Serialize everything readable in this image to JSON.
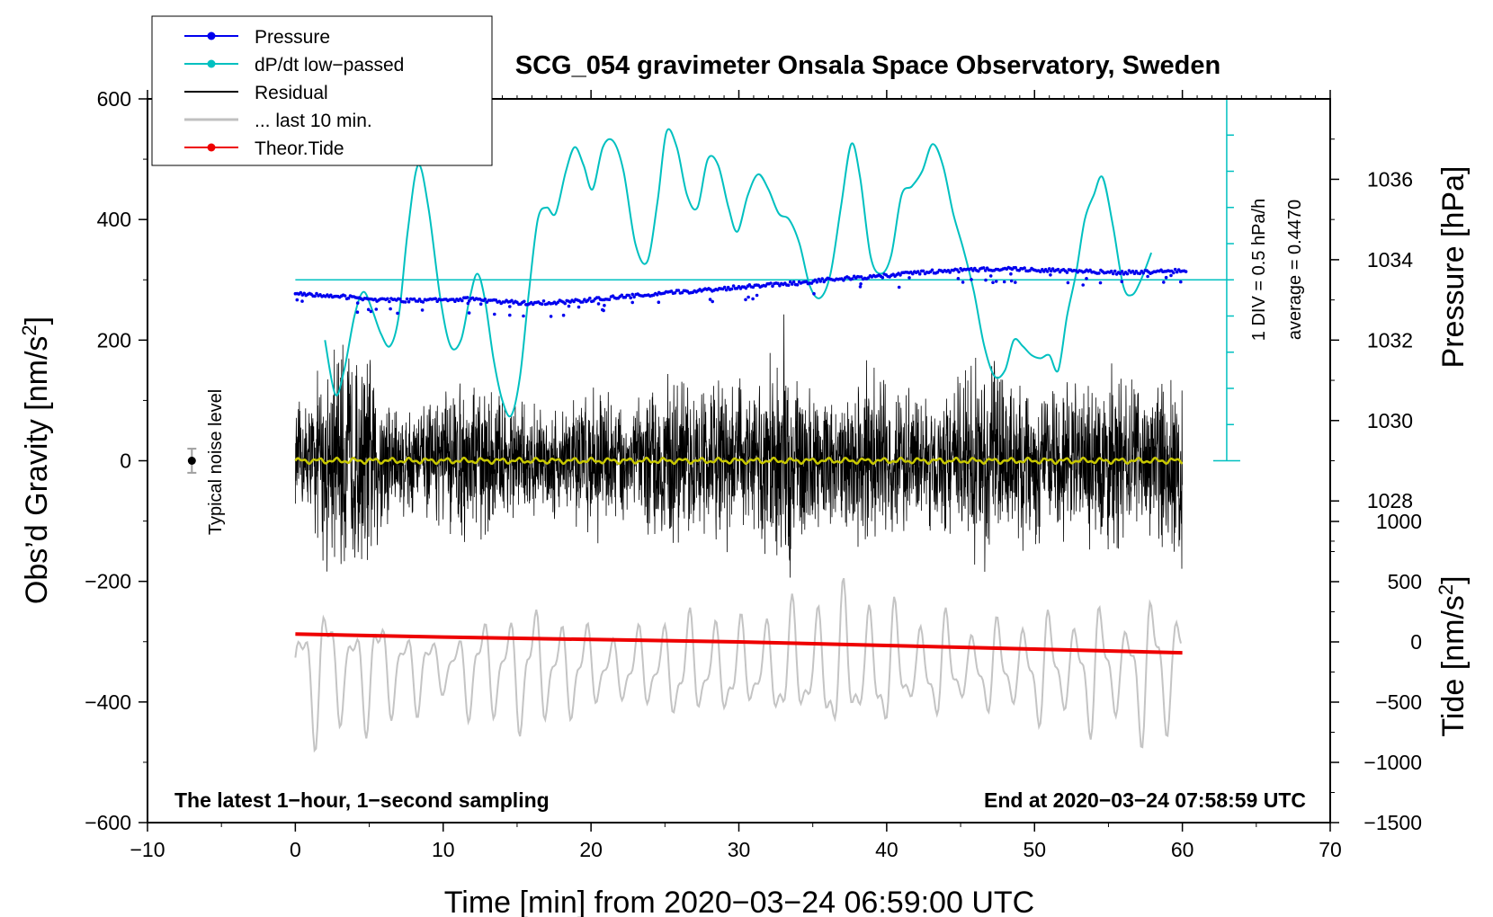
{
  "chart_data": {
    "type": "line",
    "title": "SCG_054 gravimeter Onsala Space Observatory, Sweden",
    "xlabel": "Time [min] from 2020−03−24 06:59:00 UTC",
    "ylabel_left_main": "Obs’d Gravity [nm/s",
    "ylabel_left_sup": "2",
    "ylabel_left_end": "]",
    "ylabel_right_pressure": "Pressure [hPa]",
    "ylabel_right_tide_main": "Tide [nm/s",
    "ylabel_right_tide_sup": "2",
    "ylabel_right_tide_end": "]",
    "xlim": [
      -10,
      70
    ],
    "ylim": [
      -600,
      600
    ],
    "x_ticks": [
      -10,
      0,
      10,
      20,
      30,
      40,
      50,
      60,
      70
    ],
    "x_tick_labels": [
      "−10",
      "0",
      "10",
      "20",
      "30",
      "40",
      "50",
      "60",
      "70"
    ],
    "y_ticks": [
      -600,
      -400,
      -200,
      0,
      200,
      400,
      600
    ],
    "y_tick_labels": [
      "−600",
      "−400",
      "−200",
      "0",
      "200",
      "400",
      "600"
    ],
    "pressure_axis": {
      "ticks": [
        1028,
        1030,
        1032,
        1034,
        1036
      ],
      "tick_labels": [
        "1028",
        "1030",
        "1032",
        "1034",
        "1036"
      ],
      "range_hPa": [
        1020,
        1038
      ]
    },
    "tide_axis": {
      "ticks": [
        -1500,
        -1000,
        -500,
        0,
        500,
        1000
      ],
      "tick_labels": [
        "−1500",
        "−1000",
        "−500",
        "0",
        "500",
        "1000"
      ],
      "range": [
        -1500,
        1000
      ]
    },
    "dpdt_scale": {
      "div_label": "1 DIV = 0.5 hPa/h",
      "average_label": "average = 0.4470",
      "zero_level_gravity_units": 300,
      "base_gravity_units": 0,
      "top_gravity_units": 600,
      "div_gravity_units": 60
    },
    "legend": [
      {
        "label": "Pressure",
        "color": "#0000ee",
        "marker": true
      },
      {
        "label": "dP/dt low−passed",
        "color": "#00c0c0",
        "marker": true
      },
      {
        "label": "Residual",
        "color": "#000000",
        "marker": false
      },
      {
        "label": "... last 10 min.",
        "color": "#c0c0c0",
        "marker": false
      },
      {
        "label": "Theor.Tide",
        "color": "#ee0000",
        "marker": true
      }
    ],
    "annotations": {
      "left_bottom": "The latest 1−hour, 1−second sampling",
      "right_bottom": "End at 2020−03−24 07:58:59 UTC",
      "noise": "Typical noise level",
      "noise_x": -7,
      "noise_y": 0,
      "noise_half_range": 20
    },
    "series": [
      {
        "name": "Pressure",
        "axis": "pressure",
        "color": "#0000ee",
        "x": [
          0,
          2,
          4,
          6,
          8,
          10,
          12,
          14,
          16,
          18,
          20,
          22,
          24,
          26,
          28,
          30,
          32,
          34,
          36,
          38,
          40,
          42,
          44,
          46,
          48,
          50,
          52,
          54,
          56,
          58,
          60
        ],
        "values": [
          1033.15,
          1033.12,
          1033.05,
          1033.0,
          1032.98,
          1033.0,
          1033.02,
          1032.95,
          1032.92,
          1032.95,
          1033.0,
          1033.08,
          1033.12,
          1033.2,
          1033.25,
          1033.32,
          1033.38,
          1033.42,
          1033.5,
          1033.55,
          1033.6,
          1033.68,
          1033.72,
          1033.75,
          1033.78,
          1033.75,
          1033.72,
          1033.7,
          1033.68,
          1033.7,
          1033.72
        ]
      },
      {
        "name": "dP/dt low−passed",
        "axis": "gravity",
        "color": "#00c0c0",
        "x": [
          2.0,
          2.7,
          3.3,
          4.0,
          4.6,
          5.2,
          5.8,
          6.4,
          7.0,
          7.6,
          8.3,
          9.0,
          9.8,
          10.5,
          11.2,
          11.8,
          12.3,
          12.8,
          13.4,
          14.0,
          14.6,
          15.2,
          15.8,
          16.4,
          17.0,
          17.6,
          18.3,
          18.9,
          19.5,
          20.1,
          20.8,
          21.5,
          22.2,
          23.0,
          23.8,
          24.5,
          25.1,
          25.8,
          26.5,
          27.2,
          27.9,
          28.6,
          29.3,
          29.9,
          30.6,
          31.3,
          32.0,
          32.7,
          33.4,
          34.1,
          34.8,
          35.5,
          36.2,
          36.9,
          37.6,
          38.2,
          38.9,
          39.6,
          40.3,
          41.0,
          41.7,
          42.4,
          43.1,
          43.8,
          44.5,
          45.2,
          45.9,
          46.6,
          47.3,
          48.0,
          48.6,
          49.2,
          49.8,
          50.4,
          51.0,
          51.6,
          52.2,
          52.8,
          53.4,
          54.0,
          54.6,
          55.3,
          56.0,
          56.6,
          57.2,
          57.9
        ],
        "values": [
          200,
          110,
          150,
          240,
          280,
          250,
          210,
          190,
          240,
          380,
          490,
          420,
          270,
          190,
          200,
          270,
          310,
          270,
          170,
          100,
          75,
          140,
          280,
          400,
          420,
          410,
          480,
          520,
          490,
          450,
          520,
          530,
          480,
          360,
          330,
          430,
          545,
          520,
          440,
          420,
          500,
          490,
          420,
          380,
          440,
          475,
          450,
          410,
          400,
          360,
          290,
          270,
          310,
          420,
          525,
          470,
          340,
          310,
          340,
          440,
          455,
          480,
          525,
          490,
          410,
          350,
          280,
          190,
          140,
          150,
          200,
          190,
          175,
          170,
          175,
          150,
          240,
          310,
          400,
          440,
          470,
          390,
          290,
          275,
          300,
          345
        ]
      },
      {
        "name": "Theor.Tide",
        "axis": "tide",
        "color": "#ee0000",
        "x": [
          0,
          10,
          20,
          30,
          40,
          50,
          60
        ],
        "values": [
          65,
          40,
          20,
          0,
          -30,
          -60,
          -90
        ]
      }
    ],
    "residual_envelope": {
      "x": [
        0,
        1,
        2,
        3,
        4,
        5,
        6,
        7,
        8,
        9,
        10,
        11,
        12,
        13,
        14,
        15,
        16,
        17,
        18,
        19,
        20,
        21,
        22,
        23,
        24,
        25,
        26,
        27,
        28,
        29,
        30,
        31,
        32,
        33,
        34,
        35,
        36,
        37,
        38,
        39,
        40,
        41,
        42,
        43,
        44,
        45,
        46,
        47,
        48,
        49,
        50,
        51,
        52,
        53,
        54,
        55,
        56,
        57,
        58,
        59,
        60
      ],
      "amplitude": [
        100,
        120,
        200,
        220,
        210,
        200,
        150,
        110,
        110,
        100,
        130,
        150,
        150,
        140,
        130,
        110,
        100,
        100,
        110,
        130,
        140,
        140,
        120,
        110,
        140,
        160,
        150,
        130,
        150,
        170,
        150,
        140,
        190,
        260,
        180,
        140,
        110,
        120,
        160,
        180,
        150,
        130,
        120,
        130,
        140,
        150,
        180,
        190,
        170,
        160,
        150,
        140,
        150,
        150,
        170,
        180,
        170,
        150,
        140,
        160,
        230
      ]
    },
    "last10_envelope": {
      "x": [
        0,
        2,
        4,
        6,
        8,
        10,
        12,
        14,
        16,
        18,
        20,
        22,
        24,
        26,
        28,
        30,
        32,
        34,
        36,
        38,
        40,
        42,
        44,
        46,
        48,
        50,
        52,
        54,
        56,
        58,
        60
      ],
      "amplitude": [
        95,
        130,
        95,
        105,
        75,
        50,
        85,
        100,
        110,
        90,
        75,
        55,
        80,
        90,
        95,
        80,
        95,
        110,
        125,
        135,
        110,
        85,
        90,
        70,
        85,
        95,
        95,
        110,
        100,
        130,
        150
      ]
    }
  }
}
